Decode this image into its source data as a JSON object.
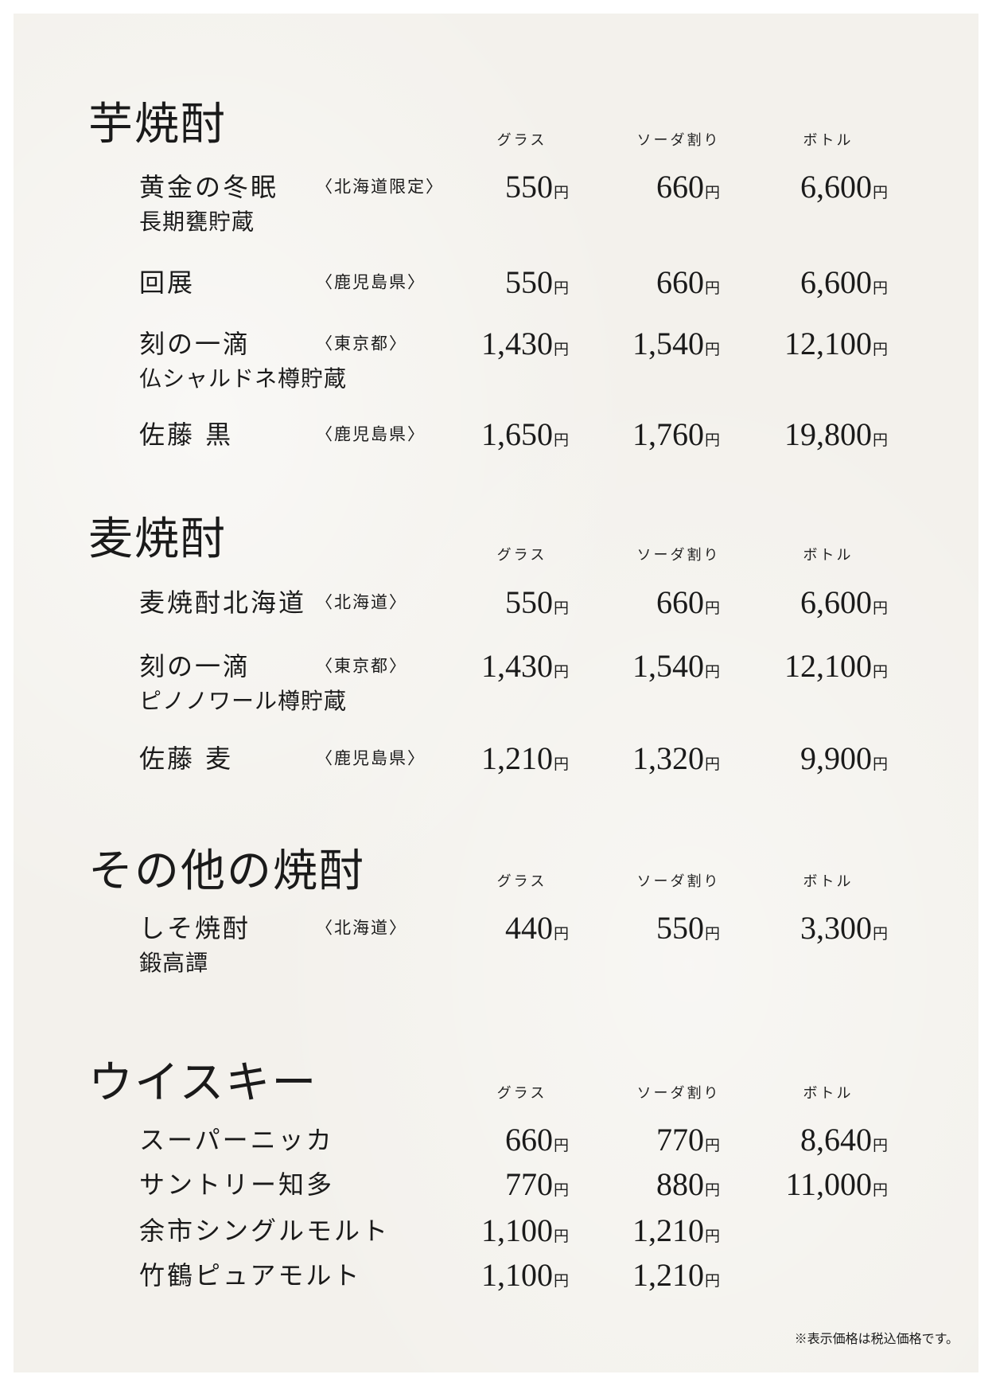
{
  "columns": [
    "グラス",
    "ソーダ割り",
    "ボトル"
  ],
  "currency": "円",
  "sections": [
    {
      "title": "芋焼酎",
      "items": [
        {
          "name": "黄金の冬眠",
          "origin": "〈北海道限定〉",
          "sub": "長期甕貯蔵",
          "prices": [
            "550",
            "660",
            "6,600"
          ]
        },
        {
          "name": "回展",
          "origin": "〈鹿児島県〉",
          "prices": [
            "550",
            "660",
            "6,600"
          ]
        },
        {
          "name": "刻の一滴",
          "origin": "〈東京都〉",
          "sub": "仏シャルドネ樽貯蔵",
          "prices": [
            "1,430",
            "1,540",
            "12,100"
          ]
        },
        {
          "name": "佐藤 黒",
          "origin": "〈鹿児島県〉",
          "prices": [
            "1,650",
            "1,760",
            "19,800"
          ]
        }
      ]
    },
    {
      "title": "麦焼酎",
      "items": [
        {
          "name": "麦焼酎北海道",
          "origin": "〈北海道〉",
          "prices": [
            "550",
            "660",
            "6,600"
          ]
        },
        {
          "name": "刻の一滴",
          "origin": "〈東京都〉",
          "sub": "ピノノワール樽貯蔵",
          "prices": [
            "1,430",
            "1,540",
            "12,100"
          ]
        },
        {
          "name": "佐藤 麦",
          "origin": "〈鹿児島県〉",
          "prices": [
            "1,210",
            "1,320",
            "9,900"
          ]
        }
      ]
    },
    {
      "title": "その他の焼酎",
      "items": [
        {
          "name": "しそ焼酎",
          "origin": "〈北海道〉",
          "sub": "鍛高譚",
          "prices": [
            "440",
            "550",
            "3,300"
          ]
        }
      ]
    },
    {
      "title": "ウイスキー",
      "items": [
        {
          "name": "スーパーニッカ",
          "prices": [
            "660",
            "770",
            "8,640"
          ]
        },
        {
          "name": "サントリー知多",
          "prices": [
            "770",
            "880",
            "11,000"
          ]
        },
        {
          "name": "余市シングルモルト",
          "prices": [
            "1,100",
            "1,210"
          ]
        },
        {
          "name": "竹鶴ピュアモルト",
          "prices": [
            "1,100",
            "1,210"
          ]
        }
      ]
    }
  ],
  "footnote": "※表示価格は税込価格です。"
}
